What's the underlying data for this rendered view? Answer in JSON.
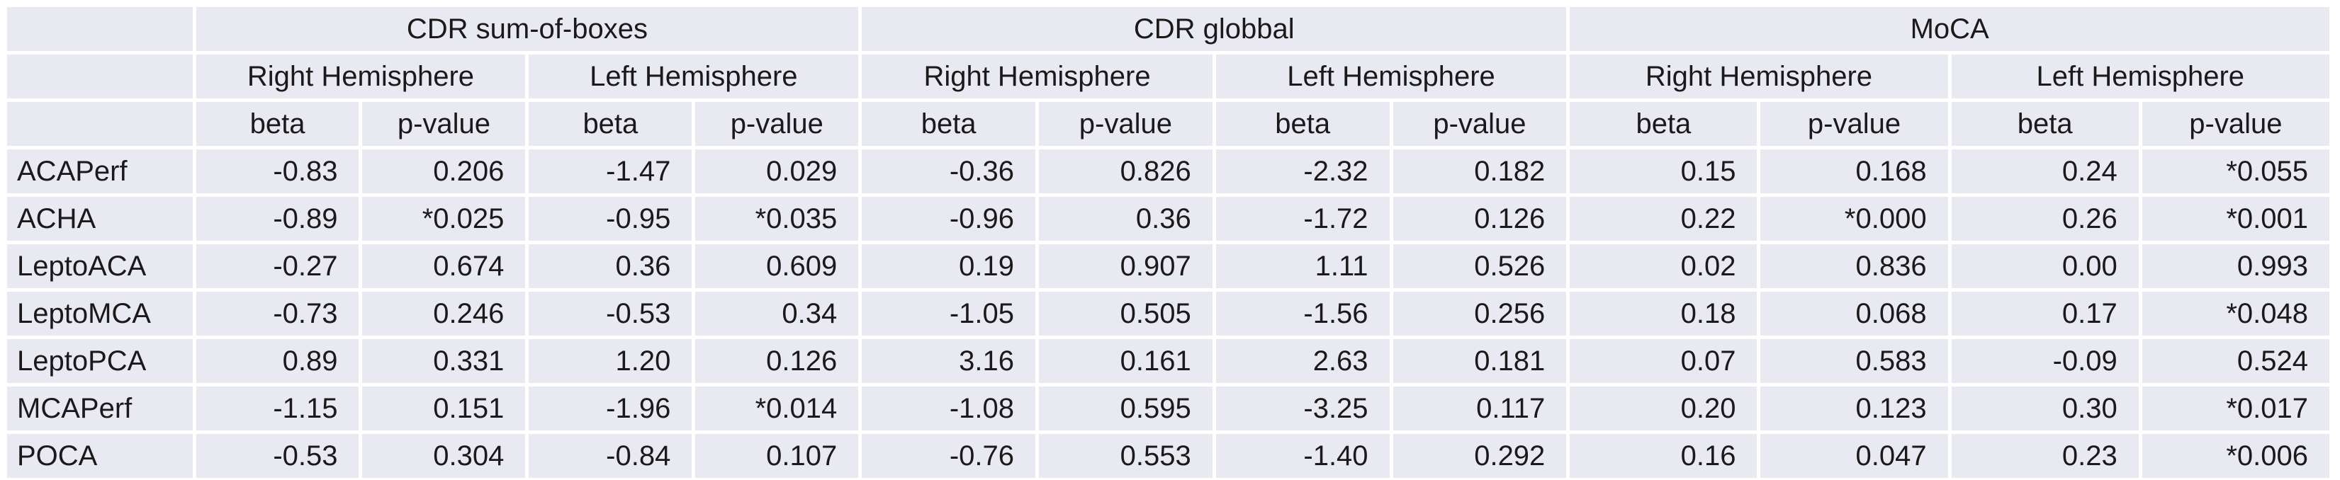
{
  "table": {
    "groups": [
      {
        "label": "CDR sum-of-boxes"
      },
      {
        "label": "CDR globbal"
      },
      {
        "label": "MoCA"
      }
    ],
    "hemisphere_headers": [
      "Right Hemisphere",
      "Left Hemisphere"
    ],
    "stat_headers": [
      "beta",
      "p-value"
    ],
    "rows": [
      {
        "label": "ACAPerf",
        "values": [
          "-0.83",
          "0.206",
          "-1.47",
          "0.029",
          "-0.36",
          "0.826",
          "-2.32",
          "0.182",
          "0.15",
          "0.168",
          "0.24",
          "*0.055"
        ]
      },
      {
        "label": "ACHA",
        "values": [
          "-0.89",
          "*0.025",
          "-0.95",
          "*0.035",
          "-0.96",
          "0.36",
          "-1.72",
          "0.126",
          "0.22",
          "*0.000",
          "0.26",
          "*0.001"
        ]
      },
      {
        "label": "LeptoACA",
        "values": [
          "-0.27",
          "0.674",
          "0.36",
          "0.609",
          "0.19",
          "0.907",
          "1.11",
          "0.526",
          "0.02",
          "0.836",
          "0.00",
          "0.993"
        ]
      },
      {
        "label": "LeptoMCA",
        "values": [
          "-0.73",
          "0.246",
          "-0.53",
          "0.34",
          "-1.05",
          "0.505",
          "-1.56",
          "0.256",
          "0.18",
          "0.068",
          "0.17",
          "*0.048"
        ]
      },
      {
        "label": "LeptoPCA",
        "values": [
          "0.89",
          "0.331",
          "1.20",
          "0.126",
          "3.16",
          "0.161",
          "2.63",
          "0.181",
          "0.07",
          "0.583",
          "-0.09",
          "0.524"
        ]
      },
      {
        "label": "MCAPerf",
        "values": [
          "-1.15",
          "0.151",
          "-1.96",
          "*0.014",
          "-1.08",
          "0.595",
          "-3.25",
          "0.117",
          "0.20",
          "0.123",
          "0.30",
          "*0.017"
        ]
      },
      {
        "label": "POCA",
        "values": [
          "-0.53",
          "0.304",
          "-0.84",
          "0.107",
          "-0.76",
          "0.553",
          "-1.40",
          "0.292",
          "0.16",
          "0.047",
          "0.23",
          "*0.006"
        ]
      }
    ],
    "colors": {
      "cell_background": "#E9E9F2",
      "grid_gap": "#FFFFFF",
      "text": "#1A1A1A"
    },
    "significance_marker": "*"
  }
}
